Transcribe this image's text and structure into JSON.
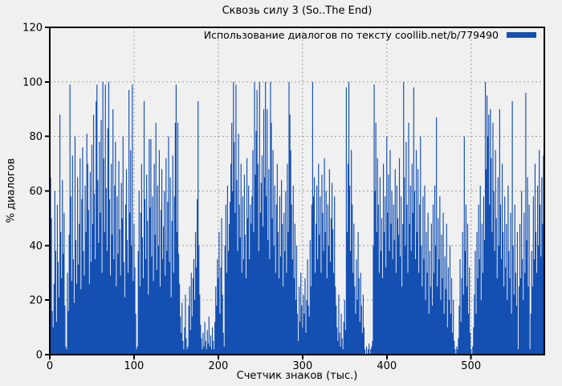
{
  "figure": {
    "background": "#f0f0f0",
    "border_color": "#000000",
    "grid_color": "#9c9c9c",
    "text_color": "#000000"
  },
  "chart_data": {
    "type": "bar",
    "style": "impulses",
    "title": "Сквозь силу 3 (So..The End)",
    "legend": "Использование диалогов по тексту coollib.net/b/779490",
    "xlabel": "Счетчик знаков (тыс.)",
    "ylabel": "% диалогов",
    "xlim": [
      0,
      587
    ],
    "ylim": [
      0,
      120
    ],
    "xticks": [
      0,
      100,
      200,
      300,
      400,
      500
    ],
    "yticks": [
      0,
      20,
      40,
      60,
      80,
      100,
      120
    ],
    "grid": true,
    "legend_position": "top-right-inside",
    "series_color": "#1450b2",
    "x_start": 0,
    "x_step": 1,
    "values": [
      99,
      65,
      50,
      16,
      10,
      26,
      60,
      38,
      12,
      55,
      34,
      21,
      88,
      45,
      28,
      64,
      37,
      52,
      18,
      3,
      2,
      30,
      16,
      44,
      99,
      58,
      27,
      73,
      35,
      19,
      80,
      42,
      26,
      65,
      33,
      48,
      72,
      24,
      57,
      76,
      38,
      29,
      62,
      45,
      81,
      70,
      53,
      26,
      67,
      34,
      77,
      48,
      88,
      59,
      35,
      93,
      99,
      64,
      41,
      78,
      52,
      86,
      30,
      100,
      72,
      45,
      99,
      61,
      38,
      83,
      100,
      57,
      29,
      70,
      44,
      90,
      35,
      62,
      78,
      25,
      58,
      37,
      71,
      46,
      29,
      63,
      50,
      80,
      34,
      21,
      55,
      68,
      42,
      30,
      97,
      52,
      75,
      40,
      99,
      27,
      48,
      32,
      15,
      2,
      3,
      38,
      60,
      25,
      52,
      70,
      43,
      28,
      93,
      57,
      35,
      66,
      49,
      22,
      79,
      54,
      79,
      36,
      58,
      27,
      70,
      44,
      85,
      31,
      62,
      40,
      75,
      25,
      53,
      68,
      35,
      47,
      60,
      29,
      72,
      38,
      56,
      80,
      34,
      65,
      21,
      49,
      73,
      30,
      58,
      85,
      99,
      45,
      85,
      37,
      26,
      14,
      8,
      19,
      5,
      2,
      10,
      22,
      6,
      2,
      3,
      18,
      25,
      9,
      30,
      14,
      28,
      35,
      20,
      45,
      32,
      57,
      93,
      40,
      22,
      11,
      6,
      2,
      8,
      3,
      12,
      5,
      2,
      9,
      4,
      14,
      3,
      7,
      2,
      10,
      5,
      2,
      12,
      25,
      18,
      35,
      28,
      45,
      15,
      32,
      50,
      22,
      8,
      3,
      40,
      55,
      30,
      62,
      38,
      48,
      56,
      70,
      85,
      60,
      100,
      78,
      52,
      99,
      64,
      38,
      81,
      55,
      43,
      70,
      30,
      58,
      35,
      66,
      44,
      28,
      72,
      50,
      62,
      35,
      55,
      48,
      58,
      75,
      45,
      100,
      66,
      82,
      97,
      70,
      38,
      100,
      52,
      63,
      73,
      47,
      90,
      65,
      100,
      58,
      90,
      42,
      68,
      35,
      100,
      85,
      50,
      75,
      40,
      62,
      30,
      55,
      70,
      45,
      28,
      58,
      36,
      64,
      48,
      25,
      52,
      38,
      60,
      30,
      70,
      45,
      100,
      88,
      75,
      55,
      35,
      62,
      28,
      48,
      20,
      40,
      15,
      5,
      25,
      12,
      30,
      18,
      10,
      22,
      15,
      28,
      8,
      20,
      35,
      18,
      14,
      42,
      25,
      55,
      100,
      58,
      65,
      30,
      48,
      62,
      35,
      70,
      44,
      58,
      30,
      66,
      52,
      38,
      72,
      45,
      60,
      28,
      55,
      40,
      68,
      34,
      50,
      63,
      46,
      30,
      58,
      25,
      18,
      10,
      5,
      22,
      8,
      3,
      15,
      6,
      2,
      12,
      20,
      9,
      98,
      45,
      70,
      100,
      62,
      38,
      75,
      55,
      30,
      48,
      25,
      15,
      35,
      20,
      45,
      28,
      12,
      30,
      18,
      8,
      22,
      10,
      2,
      0,
      3,
      0,
      2,
      4,
      0,
      2,
      3,
      5,
      40,
      99,
      60,
      85,
      45,
      72,
      55,
      30,
      65,
      38,
      50,
      28,
      70,
      45,
      58,
      32,
      80,
      52,
      66,
      38,
      75,
      48,
      60,
      35,
      55,
      42,
      68,
      30,
      62,
      50,
      44,
      72,
      36,
      58,
      25,
      48,
      100,
      65,
      40,
      78,
      55,
      30,
      85,
      48,
      62,
      38,
      70,
      52,
      98,
      60,
      35,
      75,
      45,
      68,
      30,
      55,
      80,
      40,
      25,
      58,
      35,
      62,
      20,
      45,
      30,
      52,
      15,
      38,
      25,
      48,
      18,
      55,
      30,
      62,
      40,
      87,
      25,
      50,
      35,
      58,
      20,
      44,
      28,
      52,
      15,
      36,
      24,
      48,
      10,
      32,
      20,
      40,
      15,
      28,
      8,
      20,
      5,
      2,
      0,
      3,
      2,
      6,
      18,
      35,
      12,
      28,
      45,
      22,
      80,
      38,
      55,
      25,
      48,
      15,
      32,
      8,
      2,
      0,
      3,
      10,
      22,
      38,
      15,
      45,
      28,
      55,
      35,
      62,
      20,
      48,
      30,
      58,
      42,
      100,
      68,
      95,
      80,
      88,
      55,
      90,
      72,
      45,
      85,
      60,
      38,
      75,
      50,
      28,
      65,
      40,
      90,
      55,
      35,
      70,
      45,
      25,
      58,
      32,
      48,
      20,
      62,
      38,
      28,
      52,
      15,
      93,
      40,
      22,
      55,
      30,
      18,
      45,
      2,
      25,
      48,
      28,
      60,
      35,
      20,
      52,
      30,
      96,
      42,
      65,
      25,
      55,
      2,
      15,
      38,
      25,
      58,
      35,
      70,
      45,
      30,
      62,
      40,
      75,
      55,
      36,
      65,
      48,
      73,
      36
    ]
  }
}
